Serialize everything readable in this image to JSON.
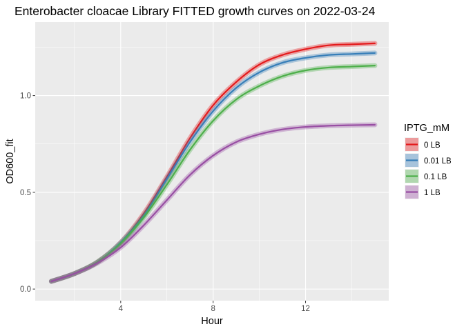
{
  "chart_data": {
    "type": "line",
    "title": "Enterobacter cloacae Library FITTED growth curves on 2022-03-24",
    "xlabel": "Hour",
    "ylabel": "OD600_fit",
    "xlim": [
      0.3,
      15.6
    ],
    "ylim": [
      -0.06,
      1.38
    ],
    "x_ticks": [
      4,
      8,
      12
    ],
    "x_tick_labels": [
      "4",
      "8",
      "12"
    ],
    "y_ticks": [
      0.0,
      0.5,
      1.0
    ],
    "y_tick_labels": [
      "0.0",
      "0.5",
      "1.0"
    ],
    "grid": true,
    "legend": {
      "title": "IPTG_mM",
      "position": "right"
    },
    "x": [
      1,
      2,
      3,
      4,
      5,
      6,
      7,
      8,
      9,
      10,
      11,
      12,
      13,
      14,
      15
    ],
    "series": [
      {
        "name": "0 LB",
        "color": "#E41A1C",
        "values": [
          0.04,
          0.08,
          0.14,
          0.24,
          0.39,
          0.58,
          0.78,
          0.95,
          1.07,
          1.16,
          1.21,
          1.24,
          1.26,
          1.265,
          1.27
        ]
      },
      {
        "name": "0.01 LB",
        "color": "#377EB8",
        "values": [
          0.04,
          0.08,
          0.14,
          0.24,
          0.38,
          0.57,
          0.76,
          0.92,
          1.04,
          1.12,
          1.17,
          1.195,
          1.21,
          1.215,
          1.22
        ]
      },
      {
        "name": "0.1 LB",
        "color": "#4DAF4A",
        "values": [
          0.04,
          0.08,
          0.14,
          0.235,
          0.37,
          0.54,
          0.72,
          0.87,
          0.98,
          1.05,
          1.1,
          1.13,
          1.145,
          1.15,
          1.155
        ]
      },
      {
        "name": "1 LB",
        "color": "#984EA3",
        "values": [
          0.04,
          0.08,
          0.135,
          0.215,
          0.33,
          0.46,
          0.59,
          0.69,
          0.76,
          0.8,
          0.825,
          0.838,
          0.844,
          0.847,
          0.849
        ]
      }
    ]
  }
}
